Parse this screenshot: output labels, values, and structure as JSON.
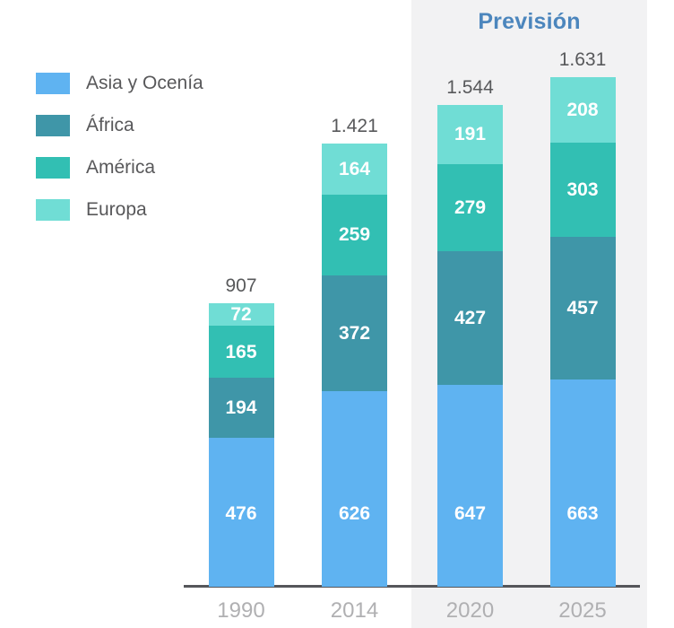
{
  "chart_data": {
    "type": "bar",
    "stacked": true,
    "title": "",
    "categories": [
      "1990",
      "2014",
      "2020",
      "2025"
    ],
    "series": [
      {
        "name": "Asia y Ocenía",
        "color": "#5fb3f1",
        "values": [
          476,
          626,
          647,
          663
        ]
      },
      {
        "name": "África",
        "color": "#3f96a8",
        "values": [
          194,
          372,
          427,
          457
        ]
      },
      {
        "name": "América",
        "color": "#32bfb3",
        "values": [
          165,
          259,
          279,
          303
        ]
      },
      {
        "name": "Europa",
        "color": "#70ddd5",
        "values": [
          72,
          164,
          191,
          208
        ]
      }
    ],
    "totals_display": [
      "907",
      "1.421",
      "1.544",
      "1.631"
    ],
    "value_label_color": "#ffffff",
    "total_label_color": "#58595b",
    "axis_label_color": "#b0b0b2",
    "axis_line_color": "#55565a",
    "legend_position": "top-left",
    "grid": false,
    "forecast": {
      "label": "Previsión",
      "categories": [
        "2020",
        "2025"
      ],
      "panel_color": "#f2f2f3",
      "label_color": "#4c86bd"
    }
  }
}
